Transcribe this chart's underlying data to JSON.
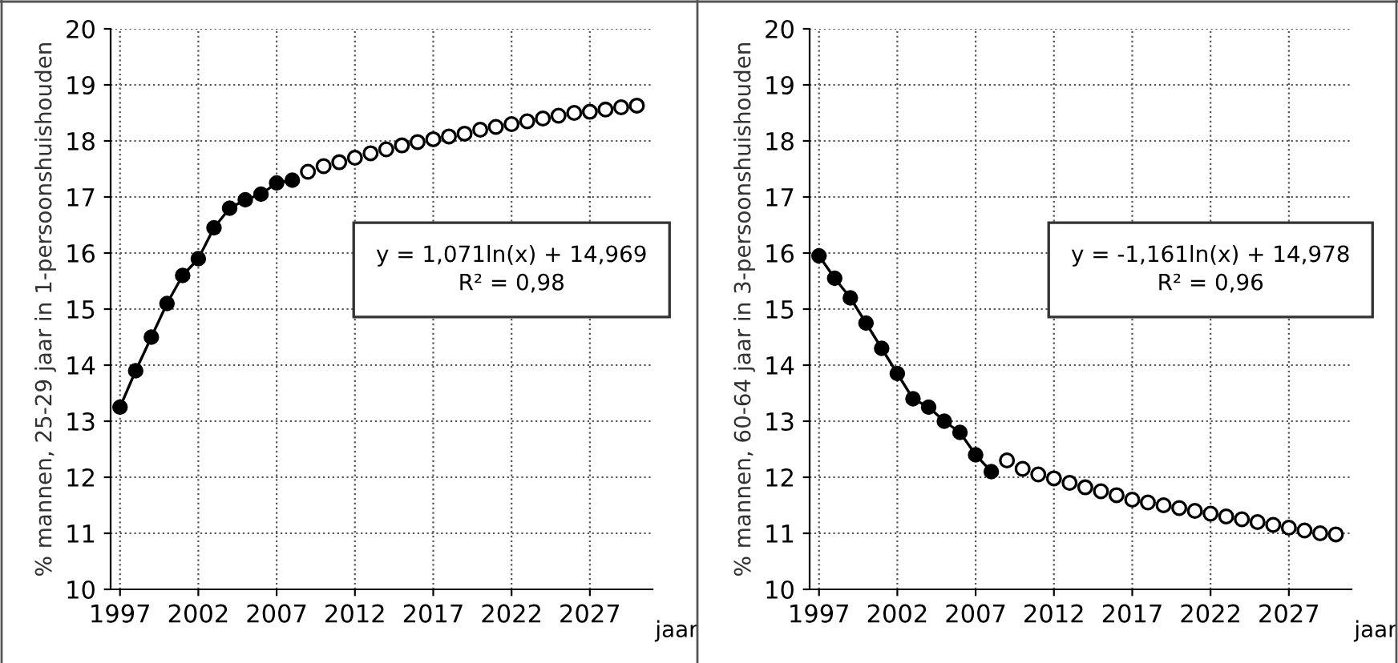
{
  "chart_data": [
    {
      "type": "line",
      "ylabel": "% mannen, 25-29 jaar in 1-persoonshuishouden",
      "xlabel": "jaar",
      "xlim": [
        1996.4,
        2031
      ],
      "xticks": [
        1997,
        2002,
        2007,
        2012,
        2017,
        2022,
        2027
      ],
      "ylim": [
        10,
        20
      ],
      "yticks": [
        10,
        11,
        12,
        13,
        14,
        15,
        16,
        17,
        18,
        19,
        20
      ],
      "grid": true,
      "legend": false,
      "annotations": [
        "y = 1,071ln(x) + 14,969\nR² = 0,98"
      ],
      "series": [
        {
          "marker": "circle",
          "color": "#000000",
          "x": [
            1997,
            1998,
            1999,
            2000,
            2001,
            2002,
            2003,
            2004,
            2005,
            2006,
            2007,
            2008
          ],
          "values": [
            13.25,
            13.9,
            14.5,
            15.1,
            15.6,
            15.9,
            16.45,
            16.8,
            16.95,
            17.05,
            17.25,
            17.3
          ]
        },
        {
          "type": "scatter",
          "marker": "circle",
          "color": "#000000",
          "x": [
            2009,
            2010,
            2011,
            2012,
            2013,
            2014,
            2015,
            2016,
            2017,
            2018,
            2019,
            2020,
            2021,
            2022,
            2023,
            2024,
            2025,
            2026,
            2027,
            2028,
            2029,
            2030
          ],
          "values": [
            17.45,
            17.55,
            17.62,
            17.7,
            17.78,
            17.85,
            17.92,
            17.98,
            18.03,
            18.08,
            18.13,
            18.2,
            18.25,
            18.3,
            18.35,
            18.4,
            18.45,
            18.5,
            18.52,
            18.56,
            18.6,
            18.63
          ]
        }
      ]
    },
    {
      "type": "line",
      "ylabel": "% mannen, 60-64 jaar in 3-persoonshuishouden",
      "xlabel": "jaar",
      "xlim": [
        1996.4,
        2031
      ],
      "xticks": [
        1997,
        2002,
        2007,
        2012,
        2017,
        2022,
        2027
      ],
      "ylim": [
        10,
        20
      ],
      "yticks": [
        10,
        11,
        12,
        13,
        14,
        15,
        16,
        17,
        18,
        19,
        20
      ],
      "grid": true,
      "legend": false,
      "annotations": [
        "y = -1,161ln(x) + 14,978\nR² = 0,96"
      ],
      "series": [
        {
          "marker": "circle",
          "color": "#000000",
          "x": [
            1997,
            1998,
            1999,
            2000,
            2001,
            2002,
            2003,
            2004,
            2005,
            2006,
            2007,
            2008
          ],
          "values": [
            15.95,
            15.55,
            15.2,
            14.75,
            14.3,
            13.85,
            13.4,
            13.25,
            13.0,
            12.8,
            12.4,
            12.1
          ]
        },
        {
          "type": "scatter",
          "marker": "circle",
          "color": "#000000",
          "x": [
            2009,
            2010,
            2011,
            2012,
            2013,
            2014,
            2015,
            2016,
            2017,
            2018,
            2019,
            2020,
            2021,
            2022,
            2023,
            2024,
            2025,
            2026,
            2027,
            2028,
            2029,
            2030
          ],
          "values": [
            12.3,
            12.15,
            12.05,
            11.98,
            11.9,
            11.82,
            11.75,
            11.68,
            11.6,
            11.55,
            11.5,
            11.45,
            11.4,
            11.35,
            11.3,
            11.25,
            11.2,
            11.15,
            11.1,
            11.05,
            11.0,
            10.98
          ]
        }
      ]
    }
  ]
}
